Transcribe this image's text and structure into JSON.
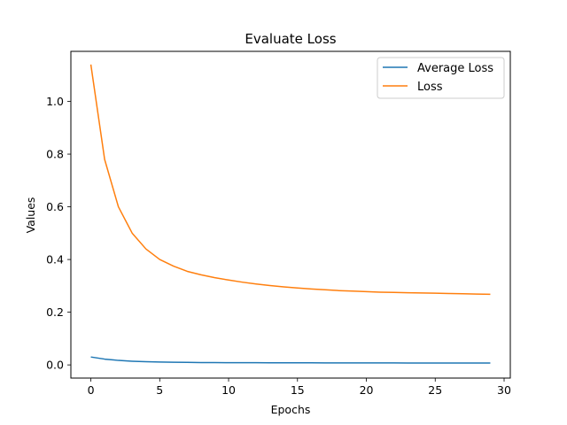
{
  "chart_data": {
    "type": "line",
    "title": "Evaluate Loss",
    "xlabel": "Epochs",
    "ylabel": "Values",
    "xlim": [
      -1.45,
      30.45
    ],
    "ylim": [
      -0.05,
      1.19
    ],
    "xticks": [
      0,
      5,
      10,
      15,
      20,
      25,
      30
    ],
    "xtick_labels": [
      "0",
      "5",
      "10",
      "15",
      "20",
      "25",
      "30"
    ],
    "yticks": [
      0.0,
      0.2,
      0.4,
      0.6,
      0.8,
      1.0
    ],
    "ytick_labels": [
      "0.0",
      "0.2",
      "0.4",
      "0.6",
      "0.8",
      "1.0"
    ],
    "grid": false,
    "legend_position": "top-right",
    "x": [
      0,
      1,
      2,
      3,
      4,
      5,
      6,
      7,
      8,
      9,
      10,
      11,
      12,
      13,
      14,
      15,
      16,
      17,
      18,
      19,
      20,
      21,
      22,
      23,
      24,
      25,
      26,
      27,
      28,
      29
    ],
    "series": [
      {
        "name": "Average Loss",
        "color": "#1f77b4",
        "values": [
          0.03,
          0.022,
          0.017,
          0.014,
          0.012,
          0.011,
          0.01,
          0.0095,
          0.009,
          0.0087,
          0.0085,
          0.0083,
          0.0082,
          0.0081,
          0.008,
          0.0079,
          0.0078,
          0.0077,
          0.0076,
          0.0075,
          0.0075,
          0.0074,
          0.0074,
          0.0073,
          0.0073,
          0.0072,
          0.0072,
          0.0071,
          0.0071,
          0.007
        ]
      },
      {
        "name": "Loss",
        "color": "#ff7f0e",
        "values": [
          1.14,
          0.78,
          0.6,
          0.5,
          0.44,
          0.4,
          0.375,
          0.355,
          0.342,
          0.331,
          0.322,
          0.314,
          0.307,
          0.301,
          0.296,
          0.292,
          0.288,
          0.285,
          0.282,
          0.28,
          0.278,
          0.276,
          0.275,
          0.274,
          0.273,
          0.272,
          0.271,
          0.27,
          0.269,
          0.268
        ]
      }
    ]
  }
}
